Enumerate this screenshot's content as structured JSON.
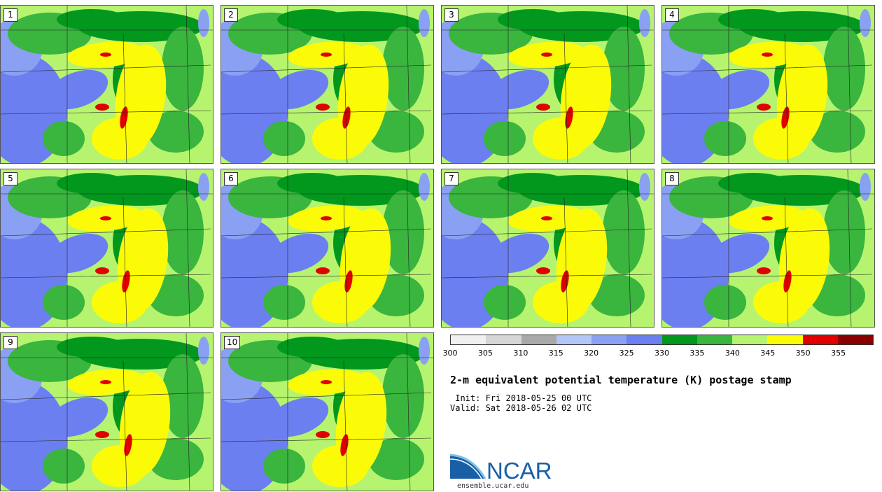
{
  "panels": [
    {
      "member": "1"
    },
    {
      "member": "2"
    },
    {
      "member": "3"
    },
    {
      "member": "4"
    },
    {
      "member": "5"
    },
    {
      "member": "6"
    },
    {
      "member": "7"
    },
    {
      "member": "8"
    },
    {
      "member": "9"
    },
    {
      "member": "10"
    }
  ],
  "colorbar": {
    "colors": [
      "#f0f0f0",
      "#d6d6d6",
      "#a9a9a9",
      "#b4c6f5",
      "#8aa0f2",
      "#6c7ff0",
      "#02981e",
      "#3ab53e",
      "#b6f46f",
      "#fbfb08",
      "#e10000",
      "#8a0000"
    ],
    "ticks": [
      "300",
      "305",
      "310",
      "315",
      "320",
      "325",
      "330",
      "335",
      "340",
      "345",
      "350",
      "355"
    ]
  },
  "title": "2-m equivalent potential temperature (K) postage stamp",
  "init": " Init: Fri 2018-05-25 00 UTC",
  "valid": "Valid: Sat 2018-05-26 02 UTC",
  "logo": {
    "text": "NCAR",
    "url": "ensemble.ucar.edu"
  }
}
